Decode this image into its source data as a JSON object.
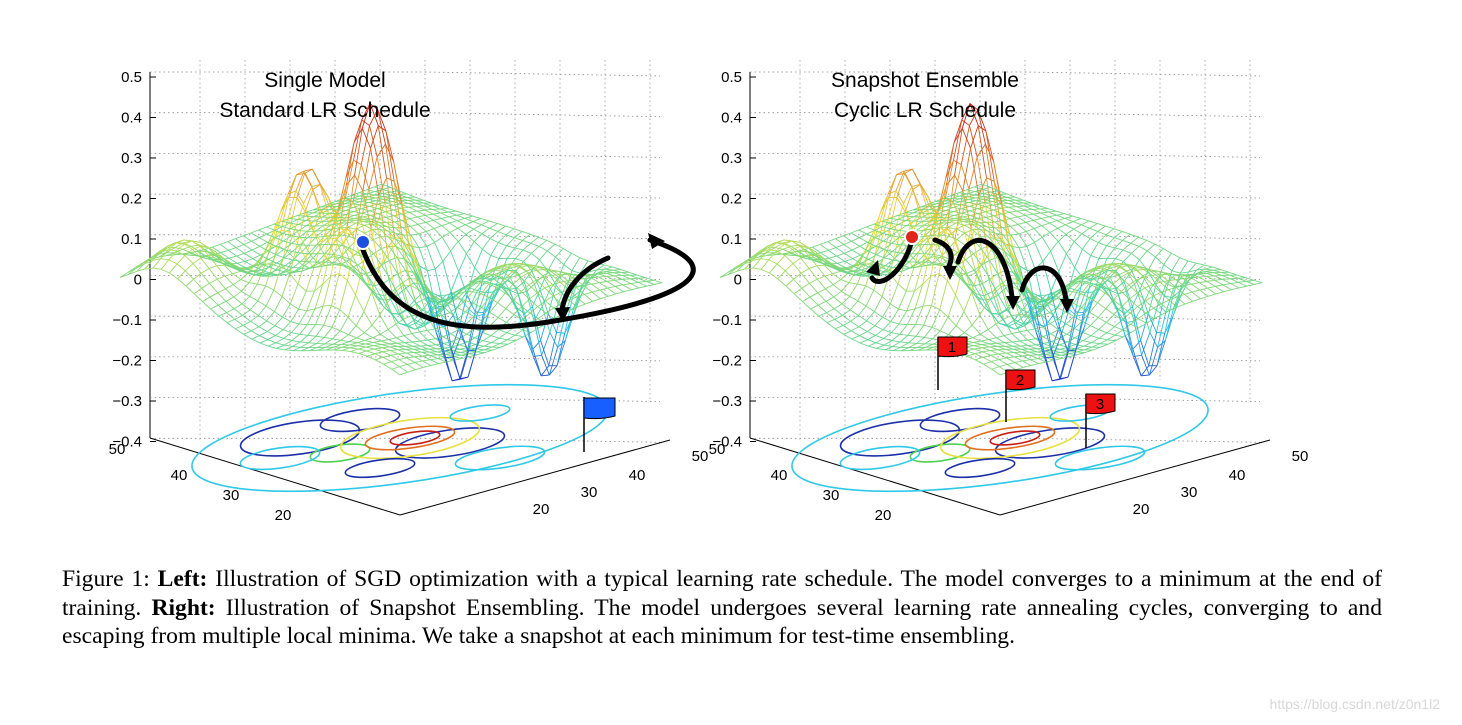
{
  "figure": {
    "panels": [
      {
        "title_line1": "Single Model",
        "title_line2": "Standard LR Schedule",
        "z_ticks": [
          "0.5",
          "0.4",
          "0.3",
          "0.2",
          "0.1",
          "0",
          "−0.1",
          "−0.2",
          "−0.3",
          "−0.4"
        ],
        "left_axis_ticks": [
          "50",
          "40",
          "30",
          "20"
        ],
        "right_axis_ticks": [
          "50",
          "40",
          "30",
          "20"
        ],
        "start_marker_color": "#1a4fe0",
        "flags": [
          {
            "label": "",
            "color": "#1760ff"
          }
        ]
      },
      {
        "title_line1": "Snapshot Ensemble",
        "title_line2": "Cyclic LR Schedule",
        "z_ticks": [
          "0.5",
          "0.4",
          "0.3",
          "0.2",
          "0.1",
          "0",
          "−0.1",
          "−0.2",
          "−0.3",
          "−0.4"
        ],
        "left_axis_ticks": [
          "50",
          "40",
          "30",
          "20"
        ],
        "right_axis_ticks": [
          "50",
          "40",
          "30",
          "20"
        ],
        "start_marker_color": "#e0241a",
        "flags": [
          {
            "label": "1",
            "color": "#ee1111"
          },
          {
            "label": "2",
            "color": "#ee1111"
          },
          {
            "label": "3",
            "color": "#ee1111"
          }
        ]
      }
    ]
  },
  "caption": {
    "prefix": "Figure 1: ",
    "left_label": "Left:",
    "left_text": " Illustration of SGD optimization with a typical learning rate schedule. The model converges to a minimum at the end of training. ",
    "right_label": "Right:",
    "right_text": " Illustration of Snapshot Ensembling. The model undergoes several learning rate annealing cycles, converging to and escaping from multiple local minima. We take a snapshot at each minimum for test-time ensembling."
  },
  "watermark": "https://blog.csdn.net/z0n1l2",
  "colors": {
    "surface_low": "#30c8e8",
    "surface_mid": "#f0e040",
    "surface_high": "#c81e14"
  }
}
